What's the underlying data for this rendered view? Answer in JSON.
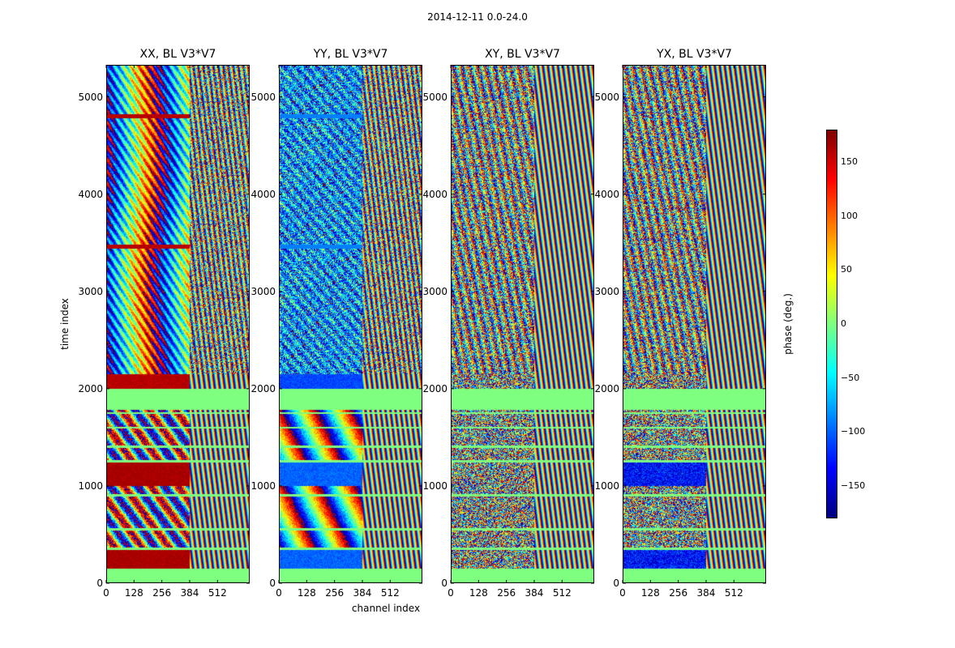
{
  "chart_data": {
    "type": "heatmap",
    "title": "2014-12-11 0.0-24.0",
    "xlabel": "channel index",
    "ylabel": "time index",
    "colorbar_label": "phase (deg.)",
    "colormap": "jet",
    "xlim": [
      0,
      660
    ],
    "ylim": [
      0,
      5330
    ],
    "xticks": [
      0,
      128,
      256,
      384,
      512
    ],
    "yticks": [
      0,
      1000,
      2000,
      3000,
      4000,
      5000
    ],
    "color_range": [
      -180,
      180
    ],
    "colorbar_ticks": [
      150,
      100,
      50,
      0,
      -50,
      -100,
      -150
    ],
    "flagged_value": 0,
    "flagged_time_bands": [
      [
        0,
        150
      ],
      [
        1780,
        2000
      ]
    ],
    "panels": [
      {
        "title": "XX, BL V3*V7",
        "style": "xx"
      },
      {
        "title": "YY, BL V3*V7",
        "style": "yy"
      },
      {
        "title": "XY, BL V3*V7",
        "style": "xy"
      },
      {
        "title": "YX, BL V3*V7",
        "style": "yx"
      }
    ]
  }
}
